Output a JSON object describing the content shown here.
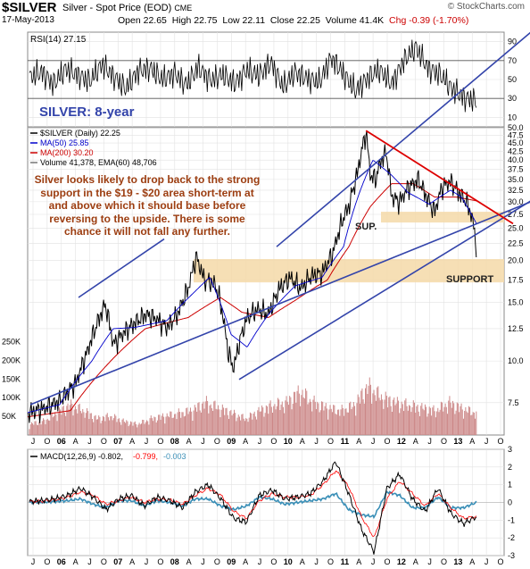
{
  "header": {
    "symbol": "$SILVER",
    "subtitle": "Silver - Spot Price (EOD)",
    "exchange": "CME",
    "date": "17-May-2013",
    "open": "Open 22.65",
    "high": "High 22.75",
    "low": "Low 22.11",
    "close": "Close 22.25",
    "volume": "Volume 41.4K",
    "chg": "Chg -0.39 (-1.70%)",
    "credit": "© StockCharts.com"
  },
  "big_title": "SILVER: 8-year",
  "annotation": "Silver looks likely to drop back to the strong support in the $19 - $20 area short-term at and above which it should base before reversing to the upside. There is some chance it will not fall any further.",
  "zone_labels": {
    "sup": "SUP.",
    "support": "SUPPORT"
  },
  "colors": {
    "price": "#000000",
    "ma50": "#0000cc",
    "ma200": "#cc0000",
    "volume": "#cc8888",
    "zone": "#f5d9a8",
    "channel": "#3344aa",
    "downtrend": "#dd0000",
    "rsi": "#000000",
    "macd": "#000000",
    "signal": "#ff0000",
    "histogram": "#3a8fb7"
  },
  "chart_data": [
    {
      "type": "line",
      "title": "RSI(14) 27.15",
      "series": [
        {
          "name": "RSI(14)",
          "values": [
            52,
            58,
            45,
            61,
            55,
            48,
            66,
            53,
            40,
            59,
            62,
            50,
            57,
            44,
            63,
            49,
            55,
            46,
            60,
            54,
            68,
            42,
            58,
            51,
            47,
            73,
            56,
            38,
            52,
            60,
            45,
            70,
            84,
            62,
            55,
            40,
            31,
            27
          ]
        }
      ],
      "yticks": [
        10,
        30,
        50,
        70,
        90
      ],
      "ylim": [
        0,
        100
      ],
      "reference_lines": [
        30,
        70
      ]
    },
    {
      "type": "line",
      "title": "$SILVER (Daily) 22.25",
      "legend": [
        "$SILVER (Daily) 22.25",
        "MA(50) 25.85",
        "MA(200) 30.20",
        "Volume 41,378, EMA(60) 48,706"
      ],
      "x_ticks": [
        "J",
        "O",
        "06",
        "A",
        "J",
        "O",
        "07",
        "A",
        "J",
        "O",
        "08",
        "A",
        "J",
        "O",
        "09",
        "A",
        "J",
        "O",
        "10",
        "A",
        "J",
        "O",
        "11",
        "A",
        "J",
        "O",
        "12",
        "A",
        "J",
        "O",
        "13",
        "A",
        "J",
        "O"
      ],
      "y_ticks": [
        7.5,
        10.0,
        12.5,
        15.0,
        17.5,
        20.0,
        22.5,
        25.0,
        27.5,
        30.0,
        32.5,
        35.0,
        37.5,
        40.0,
        42.5,
        45.0,
        47.5,
        50.0
      ],
      "volume_ticks": [
        "50K",
        "100K",
        "150K",
        "200K",
        "250K"
      ],
      "scale": "log",
      "x_range": [
        2005.0,
        2013.9
      ],
      "ylim": [
        6.0,
        50.0
      ],
      "series": [
        {
          "name": "$SILVER (Daily) 22.25",
          "x": [
            2005.0,
            2005.3,
            2005.6,
            2005.9,
            2006.1,
            2006.3,
            2006.45,
            2006.6,
            2006.8,
            2007.0,
            2007.2,
            2007.4,
            2007.6,
            2007.8,
            2008.0,
            2008.15,
            2008.3,
            2008.5,
            2008.6,
            2008.75,
            2008.85,
            2008.95,
            2009.1,
            2009.3,
            2009.5,
            2009.7,
            2009.9,
            2010.1,
            2010.3,
            2010.5,
            2010.7,
            2010.9,
            2011.0,
            2011.15,
            2011.32,
            2011.4,
            2011.5,
            2011.6,
            2011.7,
            2011.8,
            2011.95,
            2012.1,
            2012.3,
            2012.45,
            2012.6,
            2012.75,
            2012.9,
            2013.05,
            2013.2,
            2013.3,
            2013.38
          ],
          "y": [
            7.0,
            7.2,
            7.6,
            8.6,
            10.5,
            13.0,
            14.8,
            11.2,
            12.2,
            13.0,
            13.8,
            13.4,
            12.6,
            13.8,
            16.5,
            20.5,
            17.5,
            17.0,
            15.0,
            10.5,
            9.5,
            11.3,
            13.5,
            14.3,
            13.8,
            16.5,
            17.8,
            16.5,
            18.0,
            18.3,
            21.0,
            27.0,
            29.0,
            36.0,
            48.5,
            36.0,
            35.0,
            40.0,
            42.0,
            31.0,
            30.0,
            33.0,
            35.0,
            31.0,
            28.0,
            33.5,
            34.5,
            32.0,
            30.0,
            27.0,
            22.25
          ]
        },
        {
          "name": "MA(50) 25.85",
          "x": [
            2005.0,
            2005.6,
            2006.2,
            2006.6,
            2007.0,
            2007.6,
            2008.1,
            2008.4,
            2008.8,
            2009.1,
            2009.5,
            2010.0,
            2010.5,
            2010.9,
            2011.2,
            2011.45,
            2011.8,
            2012.1,
            2012.5,
            2012.9,
            2013.1,
            2013.38
          ],
          "y": [
            7.0,
            7.4,
            10.0,
            12.5,
            12.6,
            13.2,
            16.0,
            17.8,
            12.0,
            11.0,
            13.8,
            16.8,
            17.8,
            22.0,
            32.0,
            40.0,
            36.0,
            32.0,
            29.5,
            32.5,
            31.0,
            25.85
          ]
        },
        {
          "name": "MA(200) 30.20",
          "x": [
            2005.0,
            2005.8,
            2006.5,
            2007.2,
            2008.0,
            2008.6,
            2009.0,
            2009.5,
            2010.0,
            2010.6,
            2011.0,
            2011.4,
            2011.8,
            2012.2,
            2012.6,
            2013.0,
            2013.38
          ],
          "y": [
            6.8,
            7.1,
            9.8,
            12.5,
            13.5,
            15.5,
            14.0,
            13.5,
            15.2,
            17.5,
            22.0,
            29.0,
            34.0,
            34.0,
            31.0,
            31.0,
            30.2
          ]
        }
      ],
      "volume": {
        "name": "Volume 41,378, EMA(60) 48,706",
        "values_k": [
          20,
          25,
          40,
          55,
          45,
          30,
          35,
          25,
          20,
          30,
          35,
          40,
          45,
          60,
          50,
          40,
          30,
          45,
          55,
          60,
          80,
          60,
          50,
          45,
          55,
          90,
          70,
          60,
          55,
          50,
          45,
          60,
          48,
          41
        ]
      },
      "support_zones": [
        {
          "label": "SUP.",
          "low": 26.0,
          "high": 28.0
        },
        {
          "label": "SUPPORT",
          "low": 17.2,
          "high": 20.2
        }
      ]
    },
    {
      "type": "line",
      "title": "MACD(12,26,9) -0.802, -0.799, -0.003",
      "series": [
        {
          "name": "MACD(12,26,9)",
          "values": [
            0.05,
            0.1,
            0.2,
            0.4,
            0.8,
            0.3,
            -0.4,
            0.2,
            0.4,
            -0.2,
            0.3,
            0.1,
            -0.3,
            0.6,
            1.0,
            0.2,
            -0.9,
            -1.1,
            0.4,
            0.7,
            0.2,
            0.3,
            0.5,
            1.2,
            2.3,
            0.5,
            -1.5,
            -2.8,
            0.8,
            1.6,
            0.2,
            -0.5,
            0.8,
            -0.6,
            -1.2,
            -0.8
          ]
        },
        {
          "name": "-0.799",
          "values": [
            0.04,
            0.08,
            0.15,
            0.3,
            0.6,
            0.4,
            -0.1,
            0.1,
            0.3,
            0,
            0.2,
            0.15,
            -0.1,
            0.4,
            0.8,
            0.4,
            -0.5,
            -0.9,
            0.1,
            0.5,
            0.3,
            0.3,
            0.4,
            1.0,
            1.8,
            0.9,
            -0.8,
            -2.0,
            0.2,
            1.2,
            0.5,
            -0.2,
            0.5,
            -0.3,
            -0.9,
            -0.8
          ]
        },
        {
          "name": "-0.003",
          "values": [
            0,
            0.02,
            0.05,
            0.1,
            0.2,
            -0.1,
            -0.3,
            0.1,
            0.1,
            -0.2,
            0.1,
            0,
            -0.2,
            0.2,
            0.2,
            -0.2,
            -0.4,
            -0.2,
            0.3,
            0.2,
            -0.1,
            0,
            0.1,
            0.2,
            0.5,
            -0.4,
            -0.7,
            -0.8,
            0.6,
            0.4,
            -0.3,
            -0.3,
            0.3,
            -0.3,
            -0.3,
            0
          ]
        }
      ],
      "yticks": [
        -3,
        -2,
        -1,
        0,
        1,
        2,
        3
      ],
      "ylim": [
        -3,
        3
      ],
      "x_ticks": [
        "J",
        "O",
        "06",
        "A",
        "J",
        "O",
        "07",
        "A",
        "J",
        "O",
        "08",
        "A",
        "J",
        "O",
        "09",
        "A",
        "J",
        "O",
        "10",
        "A",
        "J",
        "O",
        "11",
        "A",
        "J",
        "O",
        "12",
        "A",
        "J",
        "O",
        "13",
        "A",
        "J",
        "O"
      ]
    }
  ]
}
